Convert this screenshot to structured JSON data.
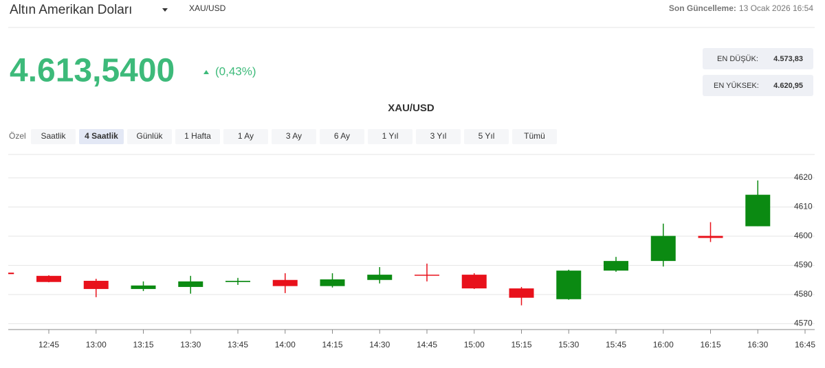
{
  "header": {
    "title": "Altın Amerikan Doları",
    "symbol": "XAU/USD",
    "last_update_label": "Son Güncelleme:",
    "last_update": "13 Ocak 2026 16:54",
    "price": "4.613,5400",
    "change": "(0,43%)",
    "low_label": "EN DÜŞÜK:",
    "low": "4.573,83",
    "high_label": "EN YÜKSEK:",
    "high": "4.620,95"
  },
  "tabs": {
    "label": "Özel",
    "items": [
      "Saatlik",
      "4 Saatlik",
      "Günlük",
      "1 Hafta",
      "1 Ay",
      "3 Ay",
      "6 Ay",
      "1 Yıl",
      "3 Yıl",
      "5 Yıl",
      "Tümü"
    ],
    "active": 1
  },
  "chart_data": {
    "type": "candlestick",
    "title": "XAU/USD",
    "categories": [
      null,
      "12:45",
      "13:00",
      "13:15",
      "13:30",
      "13:45",
      "14:00",
      "14:15",
      "14:30",
      "14:45",
      "15:00",
      "15:15",
      "15:30",
      "15:45",
      "16:00",
      "16:15",
      "16:30",
      "16:45"
    ],
    "open": [
      4587.5,
      4586.4,
      4584.7,
      4581.9,
      4582.6,
      4584.3,
      4585.0,
      4582.9,
      4585.0,
      4586.8,
      4586.8,
      4582.1,
      4578.4,
      4588.2,
      4591.5,
      4600.1,
      4603.4,
      null
    ],
    "high": [
      4587.5,
      4586.6,
      4585.4,
      4584.5,
      4586.4,
      4585.7,
      4587.3,
      4587.3,
      4589.4,
      4590.6,
      4587.3,
      4582.6,
      4588.5,
      4592.9,
      4604.3,
      4604.8,
      4619.1,
      null
    ],
    "low": [
      4587.0,
      4584.2,
      4579.1,
      4581.2,
      4580.3,
      4583.3,
      4580.5,
      4582.4,
      4583.8,
      4584.5,
      4581.9,
      4576.3,
      4578.2,
      4587.8,
      4589.6,
      4598.0,
      4603.4,
      null
    ],
    "close": [
      4587.0,
      4584.3,
      4581.9,
      4583.1,
      4584.5,
      4584.7,
      4582.9,
      4585.2,
      4586.8,
      4586.6,
      4582.1,
      4578.9,
      4588.2,
      4591.5,
      4600.1,
      4599.4,
      4614.2,
      null
    ],
    "up_color": "#0b8a12",
    "down_color": "#e8111b",
    "ylim": [
      4568,
      4628
    ],
    "yticks": [
      4570,
      4580,
      4590,
      4600,
      4610,
      4620
    ],
    "grid": true
  }
}
